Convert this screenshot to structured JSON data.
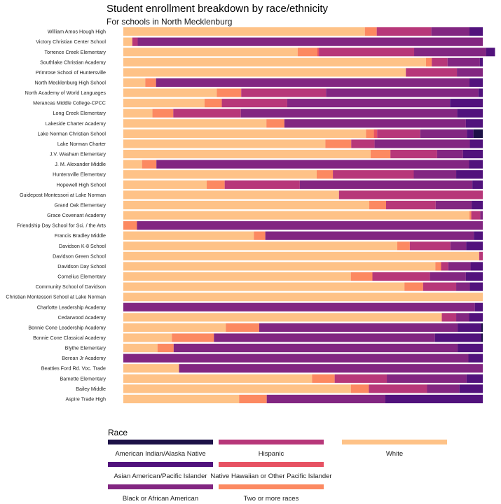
{
  "chart_data": {
    "type": "bar",
    "stacked": "100%",
    "orientation": "horizontal",
    "title": "Student enrollment breakdown by race/ethnicity",
    "subtitle": "For schools in North Mecklenburg",
    "legend_title": "Race",
    "legend_position": "bottom",
    "grid": false,
    "xlim": [
      0,
      1
    ],
    "stack_order": [
      "White",
      "Two or more races",
      "Native Hawaiian or Other Pacific Islander",
      "Hispanic",
      "Black or African American",
      "Asian American/Pacific Islander",
      "American Indian/Alaska Native"
    ],
    "legend_order": [
      "American Indian/Alaska Native",
      "Asian American/Pacific Islander",
      "Black or African American",
      "Hispanic",
      "Native Hawaiian or Other Pacific Islander",
      "Two or more races",
      "White"
    ],
    "colors": {
      "American Indian/Alaska Native": "#1d1147",
      "Asian American/Pacific Islander": "#51127c",
      "Black or African American": "#822681",
      "Hispanic": "#b73779",
      "Native Hawaiian or Other Pacific Islander": "#e75263",
      "Two or more races": "#fc8961",
      "White": "#fec287"
    },
    "categories": [
      "William Amos Hough High",
      "Victory Christian Center School",
      "Torrence Creek Elementary",
      "Southlake Christian Academy",
      "Primrose School of Huntersville",
      "North Mecklenburg High School",
      "North Academy of World Languages",
      "Merancas Middle College-CPCC",
      "Long Creek Elementary",
      "Lakeside Charter Academy",
      "Lake Norman Christian School",
      "Lake Norman Charter",
      "J.V. Washam Elementary",
      "J. M. Alexander Middle",
      "Huntersville Elementary",
      "Hopewell High School",
      "Guidepost Montessori at Lake Norman",
      "Grand Oak Elementary",
      "Grace Covenant Academy",
      "Friendship Day School for Sci. / the Arts",
      "Francis Bradley Middle",
      "Davidson K-8 School",
      "Davidson Green School",
      "Davidson Day School",
      "Cornelius Elementary",
      "Community School of Davidson",
      "Christian Montessori School at Lake Norman",
      "Charlotte Leadership Academy",
      "Cedarwood Academy",
      "Bonnie Cone Leadership Academy",
      "Bonnie Cone Classical Academy",
      "Blythe Elementary",
      "Berean Jr Academy",
      "Beatties Ford Rd. Voc. Trade",
      "Barnette Elementary",
      "Bailey Middle",
      "Aspire Trade High"
    ],
    "series": [
      {
        "name": "White",
        "values": [
          0.672,
          0.025,
          0.485,
          0.842,
          0.786,
          0.061,
          0.26,
          0.226,
          0.081,
          0.398,
          0.675,
          0.562,
          0.688,
          0.052,
          0.538,
          0.232,
          0.6,
          0.684,
          0.963,
          0.0,
          0.363,
          0.762,
          0.99,
          0.868,
          0.633,
          0.782,
          1.0,
          0.0,
          0.886,
          0.285,
          0.135,
          0.095,
          0.0,
          0.155,
          0.525,
          0.633,
          0.322
        ]
      },
      {
        "name": "Two or more races",
        "values": [
          0.033,
          0.0,
          0.055,
          0.016,
          0.0,
          0.03,
          0.068,
          0.048,
          0.058,
          0.05,
          0.022,
          0.072,
          0.055,
          0.04,
          0.045,
          0.05,
          0.0,
          0.047,
          0.005,
          0.038,
          0.032,
          0.035,
          0.0,
          0.016,
          0.06,
          0.052,
          0.0,
          0.0,
          0.0,
          0.093,
          0.117,
          0.045,
          0.0,
          0.0,
          0.063,
          0.05,
          0.077
        ]
      },
      {
        "name": "Native Hawaiian or Other Pacific Islander",
        "values": [
          0.0,
          0.0,
          0.004,
          0.0,
          0.0,
          0.0,
          0.0,
          0.0,
          0.0,
          0.0,
          0.009,
          0.0,
          0.0,
          0.0,
          0.0,
          0.0,
          0.0,
          0.0,
          0.0,
          0.0,
          0.0,
          0.0,
          0.0,
          0.0,
          0.0,
          0.0,
          0.0,
          0.0,
          0.0,
          0.0,
          0.0,
          0.0,
          0.0,
          0.0,
          0.0,
          0.0,
          0.0
        ]
      },
      {
        "name": "Hispanic",
        "values": [
          0.152,
          0.015,
          0.265,
          0.044,
          0.142,
          0.0,
          0.236,
          0.182,
          0.188,
          0.0,
          0.12,
          0.065,
          0.13,
          0.0,
          0.225,
          0.209,
          0.4,
          0.138,
          0.025,
          0.0,
          0.0,
          0.113,
          0.01,
          0.02,
          0.16,
          0.092,
          0.0,
          0.0,
          0.04,
          0.0,
          0.0,
          0.0,
          0.0,
          0.0,
          0.145,
          0.162,
          0.0
        ]
      },
      {
        "name": "Black or African American",
        "values": [
          0.106,
          0.96,
          0.2,
          0.09,
          0.072,
          0.872,
          0.424,
          0.453,
          0.602,
          0.505,
          0.13,
          0.265,
          0.072,
          0.87,
          0.118,
          0.48,
          0.0,
          0.1,
          0.007,
          0.962,
          0.58,
          0.044,
          0.0,
          0.062,
          0.1,
          0.038,
          0.0,
          0.978,
          0.036,
          0.552,
          0.615,
          0.79,
          0.96,
          0.845,
          0.222,
          0.09,
          0.33
        ]
      },
      {
        "name": "Asian American/Pacific Islander",
        "values": [
          0.037,
          0.0,
          0.025,
          0.008,
          0.0,
          0.037,
          0.012,
          0.091,
          0.071,
          0.047,
          0.018,
          0.036,
          0.055,
          0.038,
          0.074,
          0.029,
          0.0,
          0.031,
          0.0,
          0.0,
          0.025,
          0.046,
          0.0,
          0.034,
          0.047,
          0.036,
          0.0,
          0.022,
          0.038,
          0.066,
          0.129,
          0.07,
          0.04,
          0.0,
          0.045,
          0.065,
          0.271
        ]
      },
      {
        "name": "American Indian/Alaska Native",
        "values": [
          0.0,
          0.0,
          0.0,
          0.0,
          0.0,
          0.0,
          0.0,
          0.0,
          0.0,
          0.0,
          0.026,
          0.0,
          0.0,
          0.0,
          0.0,
          0.0,
          0.0,
          0.0,
          0.0,
          0.0,
          0.0,
          0.0,
          0.0,
          0.0,
          0.0,
          0.0,
          0.0,
          0.0,
          0.0,
          0.004,
          0.004,
          0.0,
          0.0,
          0.0,
          0.0,
          0.0,
          0.0
        ]
      }
    ]
  }
}
